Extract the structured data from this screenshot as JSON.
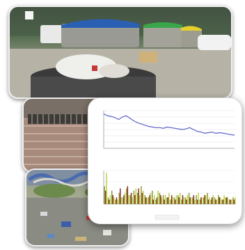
{
  "collage": {
    "photos": [
      {
        "subject": "street-waste-containers"
      },
      {
        "subject": "brick-wall-with-drain-grate"
      },
      {
        "subject": "litter-on-ground-near-graffiti-wall"
      }
    ]
  },
  "chart_data": [
    {
      "type": "line",
      "series": [
        {
          "values": [
            55,
            52,
            51,
            49,
            46,
            50,
            52,
            48,
            44,
            41,
            39,
            37,
            35,
            34,
            33,
            33,
            32,
            34,
            33,
            32,
            31,
            30,
            31,
            33,
            30,
            27,
            26,
            24,
            25,
            26,
            24,
            25,
            24,
            23,
            22,
            21
          ]
        }
      ],
      "ylim": [
        0,
        60
      ],
      "grid": true,
      "colors": {
        "line": "#5a62c8"
      }
    },
    {
      "type": "bar",
      "series": [
        {
          "values": [
            8,
            3,
            6,
            2,
            5,
            3,
            7,
            4,
            6,
            5,
            8,
            4,
            3,
            6,
            2,
            5,
            4,
            3,
            2,
            3,
            4,
            2,
            3,
            5,
            3,
            4,
            2,
            3,
            5,
            2,
            3,
            4,
            2,
            3,
            2,
            3
          ]
        },
        {
          "values": [
            6,
            2,
            4,
            3,
            7,
            4,
            8,
            5,
            4,
            7,
            5,
            3,
            4,
            2,
            3,
            4,
            2,
            3,
            4,
            2,
            3,
            4,
            2,
            3,
            4,
            2,
            3,
            4,
            2,
            3,
            2,
            3,
            2,
            3,
            2,
            2
          ]
        },
        {
          "values": [
            14,
            4,
            3,
            2,
            3,
            5,
            4,
            3,
            7,
            4,
            6,
            3,
            5,
            4,
            6,
            3,
            4,
            5,
            3,
            4,
            5,
            3,
            4,
            3,
            2,
            5,
            3,
            4,
            3,
            4,
            2,
            3,
            4,
            3,
            2,
            3
          ]
        }
      ],
      "ylim": [
        0,
        15
      ],
      "colors": {
        "series": [
          "#8b9a2a",
          "#8a2a2a",
          "#b8d040"
        ]
      }
    }
  ]
}
